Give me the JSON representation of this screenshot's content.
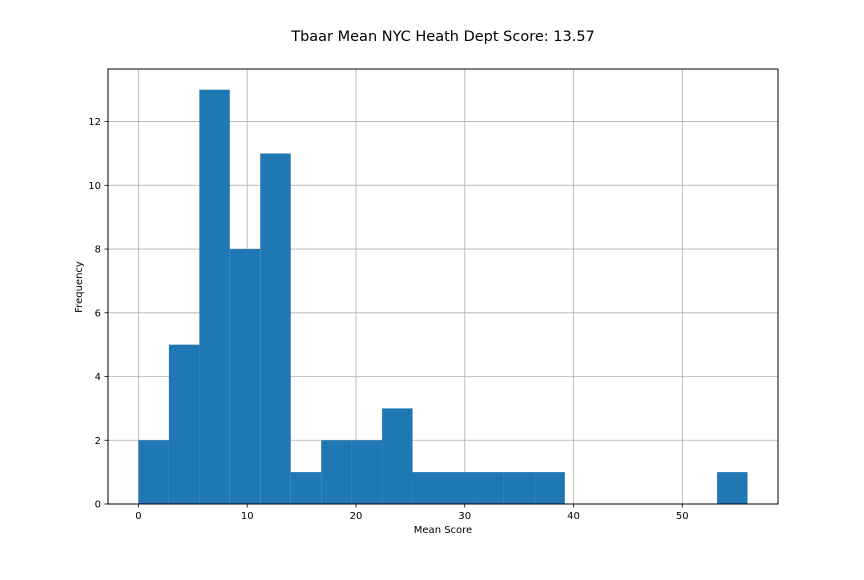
{
  "chart_data": {
    "type": "bar",
    "title": "Tbaar Mean NYC Heath Dept Score: 13.57",
    "xlabel": "Mean Score",
    "ylabel": "Frequency",
    "xlim": [
      -2.8,
      58.8
    ],
    "ylim": [
      0,
      13.65
    ],
    "xticks": [
      0,
      10,
      20,
      30,
      40,
      50
    ],
    "yticks": [
      0,
      2,
      4,
      6,
      8,
      10,
      12
    ],
    "grid": true,
    "bar_color": "#1f77b4",
    "bin_width": 2.8,
    "bins": [
      {
        "start": 0.0,
        "end": 2.8,
        "count": 2
      },
      {
        "start": 2.8,
        "end": 5.6,
        "count": 5
      },
      {
        "start": 5.6,
        "end": 8.4,
        "count": 13
      },
      {
        "start": 8.4,
        "end": 11.2,
        "count": 8
      },
      {
        "start": 11.2,
        "end": 14.0,
        "count": 11
      },
      {
        "start": 14.0,
        "end": 16.8,
        "count": 1
      },
      {
        "start": 16.8,
        "end": 19.6,
        "count": 2
      },
      {
        "start": 19.6,
        "end": 22.4,
        "count": 2
      },
      {
        "start": 22.4,
        "end": 25.2,
        "count": 3
      },
      {
        "start": 25.2,
        "end": 28.0,
        "count": 1
      },
      {
        "start": 28.0,
        "end": 30.8,
        "count": 1
      },
      {
        "start": 30.8,
        "end": 33.6,
        "count": 1
      },
      {
        "start": 33.6,
        "end": 36.4,
        "count": 1
      },
      {
        "start": 36.4,
        "end": 39.2,
        "count": 1
      },
      {
        "start": 39.2,
        "end": 42.0,
        "count": 0
      },
      {
        "start": 42.0,
        "end": 44.8,
        "count": 0
      },
      {
        "start": 44.8,
        "end": 47.6,
        "count": 0
      },
      {
        "start": 47.6,
        "end": 50.4,
        "count": 0
      },
      {
        "start": 50.4,
        "end": 53.2,
        "count": 0
      },
      {
        "start": 53.2,
        "end": 56.0,
        "count": 1
      }
    ]
  }
}
